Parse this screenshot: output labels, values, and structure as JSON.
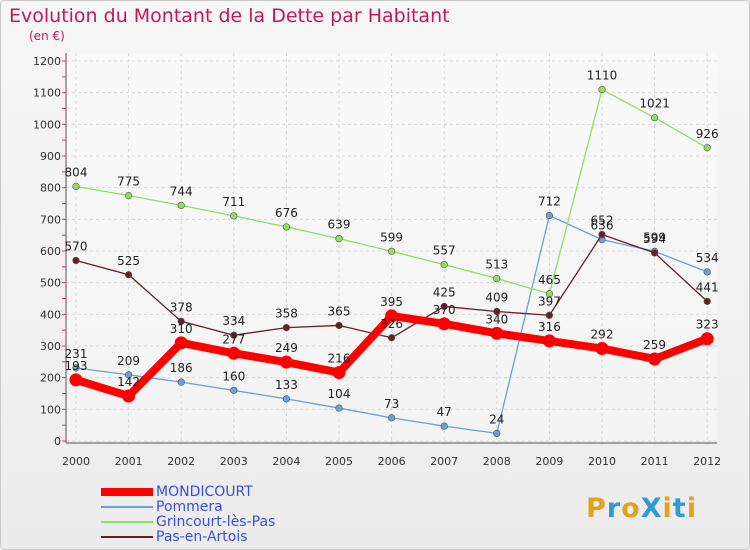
{
  "title": "Evolution du Montant de la Dette par Habitant",
  "subtitle": "(en €)",
  "logo": {
    "text": "ProXiti",
    "letters": [
      "P",
      "r",
      "o",
      "X",
      "i",
      "t",
      "i"
    ],
    "colors": [
      "#e2a120",
      "#2e9bd6",
      "#e2a120",
      "#2e9bd6",
      "#e2a120",
      "#2e9bd6",
      "#e2a120"
    ]
  },
  "chart_data": {
    "type": "line",
    "title": "Evolution du Montant de la Dette par Habitant",
    "ylabel": "(en €)",
    "xlabel": "",
    "x": [
      "2000",
      "2001",
      "2002",
      "2003",
      "2004",
      "2005",
      "2006",
      "2007",
      "2008",
      "2009",
      "2010",
      "2011",
      "2012"
    ],
    "ylim": [
      0,
      1200
    ],
    "yticks": [
      "0",
      "100",
      "200",
      "300",
      "400",
      "500",
      "600",
      "700",
      "800",
      "900",
      "1000",
      "1100",
      "1200"
    ],
    "grid": true,
    "legend_position": "bottom-left",
    "series": [
      {
        "name": "MONDICOURT",
        "color": "#ff0000",
        "values": [
          193,
          142,
          310,
          277,
          249,
          216,
          395,
          370,
          340,
          316,
          292,
          259,
          323
        ]
      },
      {
        "name": "Pommera",
        "color": "#6aa0d8",
        "values": [
          231,
          209,
          186,
          160,
          133,
          104,
          73,
          47,
          24,
          712,
          636,
          599,
          534
        ]
      },
      {
        "name": "Grincourt-lès-Pas",
        "color": "#90e060",
        "values": [
          804,
          775,
          744,
          711,
          676,
          639,
          599,
          557,
          513,
          465,
          1110,
          1021,
          926
        ]
      },
      {
        "name": "Pas-en-Artois",
        "color": "#6b1e24",
        "values": [
          570,
          525,
          378,
          334,
          358,
          365,
          326,
          425,
          409,
          397,
          652,
          594,
          441
        ]
      }
    ]
  }
}
